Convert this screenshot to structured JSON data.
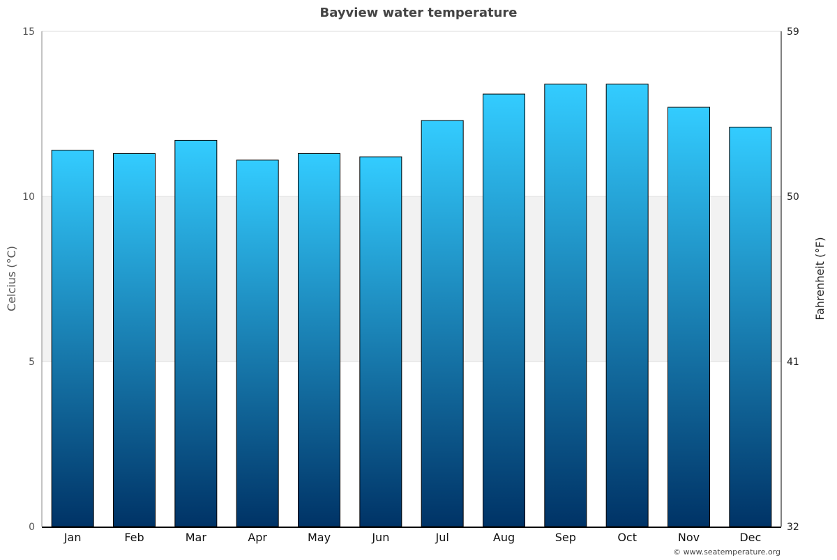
{
  "chart_data": {
    "type": "bar",
    "title": "Bayview water temperature",
    "categories": [
      "Jan",
      "Feb",
      "Mar",
      "Apr",
      "May",
      "Jun",
      "Jul",
      "Aug",
      "Sep",
      "Oct",
      "Nov",
      "Dec"
    ],
    "series": [
      {
        "values": [
          11.4,
          11.3,
          11.7,
          11.1,
          11.3,
          11.2,
          12.3,
          13.1,
          13.4,
          13.4,
          12.7,
          12.1
        ]
      }
    ],
    "ylabel": "Celcius (°C)",
    "ylabel_right": "Fahrenheit (°F)",
    "ylim": [
      0,
      15
    ],
    "yticks": [
      "0",
      "5",
      "10",
      "15"
    ],
    "yticks_right": [
      "32",
      "41",
      "50",
      "59"
    ],
    "grid": true,
    "shaded_band": [
      5,
      10
    ],
    "colors": {
      "bar_top": "#33ccff",
      "bar_bottom": "#003366",
      "band": "#f2f2f2"
    },
    "credit": "© www.seatemperature.org"
  }
}
